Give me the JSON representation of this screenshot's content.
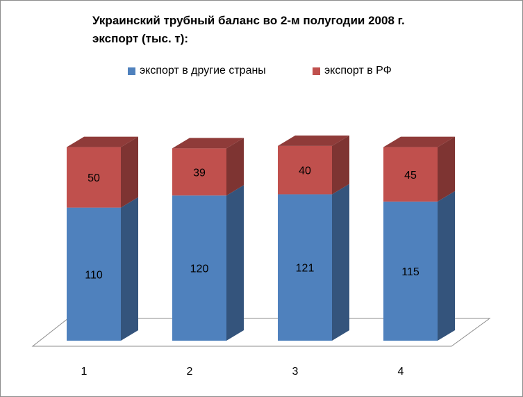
{
  "colors": {
    "series_1": "#4f81bd",
    "series_1_side": "#34547c",
    "series_1_top": "#3f6a9c",
    "series_2": "#c0504d",
    "series_2_side": "#7e3432",
    "series_2_top": "#8f3b39"
  },
  "chart_data": {
    "type": "bar",
    "stacked": true,
    "three_d": true,
    "title_lines": [
      "Украинский трубный баланс во 2-м полугодии 2008 г.",
      "экспорт (тыс. т):"
    ],
    "categories": [
      "1",
      "2",
      "3",
      "4"
    ],
    "series": [
      {
        "name": "экспорт в другие страны",
        "values": [
          110,
          120,
          121,
          115
        ]
      },
      {
        "name": "экспорт в РФ",
        "values": [
          50,
          39,
          40,
          45
        ]
      }
    ],
    "ylim": [
      0,
      160
    ],
    "grid": false,
    "legend_position": "top",
    "data_labels": true
  }
}
